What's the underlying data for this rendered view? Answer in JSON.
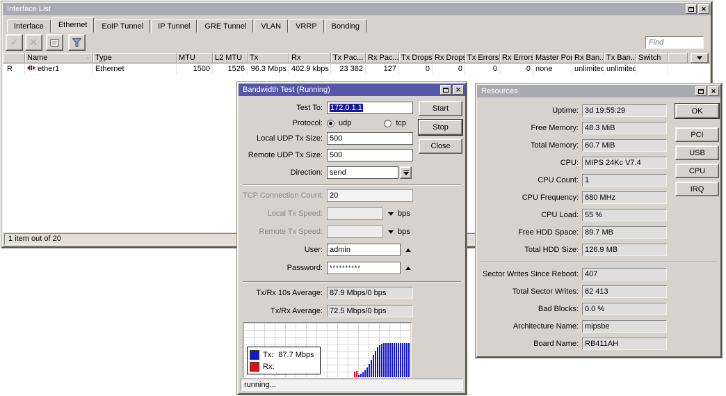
{
  "interface_list": {
    "title": "Interface List",
    "tabs": [
      "Interface",
      "Ethernet",
      "EoIP Tunnel",
      "IP Tunnel",
      "GRE Tunnel",
      "VLAN",
      "VRRP",
      "Bonding"
    ],
    "active_tab": "Ethernet",
    "find_placeholder": "Find",
    "columns": {
      "name": "Name",
      "type": "Type",
      "mtu": "MTU",
      "l2mtu": "L2 MTU",
      "tx": "Tx",
      "rx": "Rx",
      "tx_pac": "Tx Pac...",
      "rx_pac": "Rx Pac...",
      "tx_drops": "Tx Drops",
      "rx_drops": "Rx Drops",
      "tx_errors": "Tx Errors",
      "rx_errors": "Rx Errors",
      "master_port": "Master Port",
      "rx_ban": "Rx Ban...",
      "tx_ban": "Tx Ban...",
      "switch": "Switch"
    },
    "row": {
      "flag": "R",
      "name": "ether1",
      "type": "Ethernet",
      "mtu": "1500",
      "l2mtu": "1526",
      "tx": "96.3 Mbps",
      "rx": "402.9 kbps",
      "tx_pac": "23 382",
      "rx_pac": "127",
      "tx_drops": "0",
      "rx_drops": "0",
      "tx_errors": "0",
      "rx_errors": "0",
      "master_port": "none",
      "rx_ban": "unlimited",
      "tx_ban": "unlimited",
      "switch": ""
    },
    "status": "1 item out of 20"
  },
  "bandwidth_test": {
    "title": "Bandwidth Test (Running)",
    "test_to": {
      "label": "Test To:",
      "value": "172.0.1.1"
    },
    "protocol": {
      "label": "Protocol:",
      "options": [
        "udp",
        "tcp"
      ],
      "selected": "udp"
    },
    "local_udp_tx_size": {
      "label": "Local UDP Tx Size:",
      "value": "500"
    },
    "remote_udp_tx_size": {
      "label": "Remote UDP Tx Size:",
      "value": "500"
    },
    "direction": {
      "label": "Direction:",
      "value": "send"
    },
    "tcp_connection_count": {
      "label": "TCP Connection Count:",
      "value": "20"
    },
    "local_tx_speed": {
      "label": "Local Tx Speed:",
      "value": "",
      "unit": "bps"
    },
    "remote_tx_speed": {
      "label": "Remote Tx Speed:",
      "value": "",
      "unit": "bps"
    },
    "user": {
      "label": "User:",
      "value": "admin"
    },
    "password": {
      "label": "Password:",
      "value": "**********"
    },
    "txrx_10s_average": {
      "label": "Tx/Rx 10s Average:",
      "value": "87.9 Mbps/0 bps"
    },
    "txrx_average": {
      "label": "Tx/Rx Average:",
      "value": "72.5 Mbps/0 bps"
    },
    "buttons": {
      "start": "Start",
      "stop": "Stop",
      "close": "Close"
    },
    "status": "running..."
  },
  "resources": {
    "title": "Resources",
    "rows": [
      {
        "label": "Uptime:",
        "value": "3d 19:55:29"
      },
      {
        "label": "Free Memory:",
        "value": "48.3 MiB"
      },
      {
        "label": "Total Memory:",
        "value": "60.7 MiB"
      },
      {
        "label": "CPU:",
        "value": "MIPS 24Kc V7.4"
      },
      {
        "label": "CPU Count:",
        "value": "1"
      },
      {
        "label": "CPU Frequency:",
        "value": "680 MHz"
      },
      {
        "label": "CPU Load:",
        "value": "55 %"
      },
      {
        "label": "Free HDD Space:",
        "value": "89.7 MB"
      },
      {
        "label": "Total HDD Size:",
        "value": "126.9 MB"
      },
      {
        "label": "Sector Writes Since Reboot:",
        "value": "407"
      },
      {
        "label": "Total Sector Writes:",
        "value": "62 413"
      },
      {
        "label": "Bad Blocks:",
        "value": "0.0 %"
      },
      {
        "label": "Architecture Name:",
        "value": "mipsbe"
      },
      {
        "label": "Board Name:",
        "value": "RB411AH"
      }
    ],
    "buttons": [
      "OK",
      "PCI",
      "USB",
      "CPU",
      "IRQ"
    ]
  },
  "chart_data": {
    "type": "bar",
    "legend": [
      {
        "name": "Tx:",
        "value": "87.7 Mbps",
        "color": "#1515cc"
      },
      {
        "name": "Rx:",
        "value": "",
        "color": "#e01010"
      }
    ],
    "series_colors": {
      "tx": "#1515cc",
      "rx": "#e01010"
    },
    "grid": true,
    "bars_note": "h = fraction of plot height; Tx plateau corresponds to ~87.7 Mbps",
    "bars": [
      {
        "s": "rx",
        "h": 0.1
      },
      {
        "s": "rx",
        "h": 0.12
      },
      {
        "s": "tx",
        "h": 0.04
      },
      {
        "s": "tx",
        "h": 0.06
      },
      {
        "s": "tx",
        "h": 0.09
      },
      {
        "s": "tx",
        "h": 0.13
      },
      {
        "s": "tx",
        "h": 0.18
      },
      {
        "s": "tx",
        "h": 0.25
      },
      {
        "s": "tx",
        "h": 0.33
      },
      {
        "s": "tx",
        "h": 0.42
      },
      {
        "s": "tx",
        "h": 0.5
      },
      {
        "s": "tx",
        "h": 0.56
      },
      {
        "s": "tx",
        "h": 0.6
      },
      {
        "s": "tx",
        "h": 0.63
      },
      {
        "s": "tx",
        "h": 0.64
      },
      {
        "s": "tx",
        "h": 0.65
      },
      {
        "s": "tx",
        "h": 0.65
      },
      {
        "s": "tx",
        "h": 0.65
      },
      {
        "s": "tx",
        "h": 0.65
      },
      {
        "s": "tx",
        "h": 0.64
      },
      {
        "s": "tx",
        "h": 0.65
      },
      {
        "s": "tx",
        "h": 0.65
      },
      {
        "s": "tx",
        "h": 0.65
      },
      {
        "s": "tx",
        "h": 0.64
      },
      {
        "s": "tx",
        "h": 0.65
      },
      {
        "s": "tx",
        "h": 0.65
      },
      {
        "s": "tx",
        "h": 0.65
      }
    ]
  }
}
